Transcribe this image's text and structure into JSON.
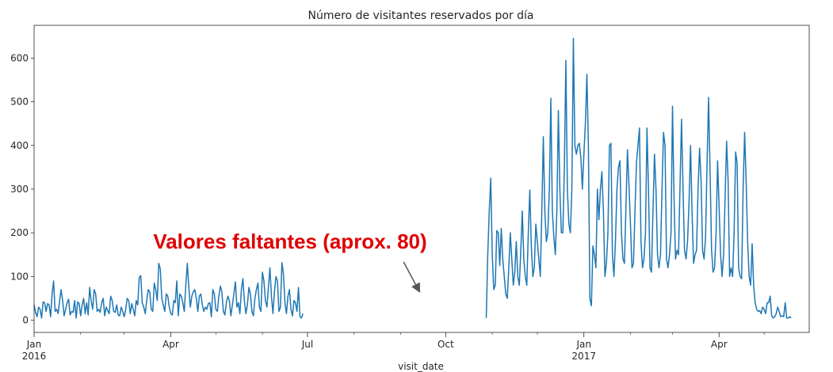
{
  "chart_data": {
    "type": "line",
    "title": "Número de visitantes reservados por día",
    "xlabel": "visit_date",
    "ylabel": "",
    "ylim": [
      -28,
      675
    ],
    "xlim": [
      "2016-01-01",
      "2017-05-31"
    ],
    "grid": false,
    "legend": "none",
    "line_color": "#1f77b4",
    "y_ticks": [
      0,
      100,
      200,
      300,
      400,
      500,
      600
    ],
    "x_ticks": [
      {
        "date": "2016-01-01",
        "label": "Jan",
        "sublabel": "2016"
      },
      {
        "date": "2016-04-01",
        "label": "Apr",
        "sublabel": ""
      },
      {
        "date": "2016-07-01",
        "label": "Jul",
        "sublabel": ""
      },
      {
        "date": "2016-10-01",
        "label": "Oct",
        "sublabel": ""
      },
      {
        "date": "2017-01-01",
        "label": "Jan",
        "sublabel": "2017"
      },
      {
        "date": "2017-04-01",
        "label": "Apr",
        "sublabel": ""
      }
    ],
    "annotation": {
      "text": "Valores faltantes (aprox. 80)",
      "color": "#e00000",
      "arrow_color": "#555555",
      "arrow_from": "2016-09-03",
      "arrow_to": "2016-09-14"
    },
    "series": [
      {
        "segments": [
          {
            "start": "2016-01-01",
            "values": [
              35,
              18,
              8,
              30,
              25,
              5,
              42,
              40,
              20,
              38,
              35,
              8,
              60,
              90,
              20,
              25,
              15,
              45,
              70,
              45,
              10,
              25,
              40,
              48,
              12,
              20,
              18,
              45,
              5,
              42,
              38,
              10,
              35,
              50,
              15,
              40,
              12,
              75,
              45,
              25,
              70,
              60,
              20,
              25,
              18,
              40,
              50,
              10,
              30,
              22,
              15,
              55,
              45,
              20,
              18,
              35,
              12,
              10,
              30,
              20,
              8,
              25,
              50,
              45,
              15,
              38,
              25,
              10,
              45,
              35,
              98,
              102,
              40,
              30,
              15,
              45,
              70,
              65,
              25,
              20,
              85,
              70,
              45,
              130,
              118,
              50,
              35,
              20,
              60,
              55,
              30,
              15,
              12,
              45,
              40,
              90,
              10,
              60,
              55,
              40,
              20,
              80,
              130,
              75,
              30,
              55,
              65,
              70,
              50,
              20,
              55,
              60,
              35,
              20,
              30,
              25,
              38,
              40,
              8,
              70,
              60,
              25,
              20,
              55,
              78,
              65,
              20,
              12,
              40,
              55,
              45,
              10,
              35,
              60,
              88,
              30,
              40,
              15,
              70,
              95,
              45,
              15,
              35,
              75,
              60,
              20,
              10,
              50,
              70,
              85,
              30,
              20,
              110,
              90,
              45,
              30,
              75,
              120,
              55,
              15,
              65,
              100,
              90,
              20,
              30,
              132,
              105,
              40,
              15,
              55,
              70,
              25,
              10,
              45,
              40,
              20,
              75,
              8,
              5,
              15
            ]
          },
          {
            "start": "2016-10-28",
            "values": [
              5,
              150,
              250,
              325,
              150,
              70,
              80,
              205,
              200,
              125,
              210,
              140,
              100,
              60,
              50,
              120,
              200,
              140,
              80,
              110,
              180,
              100,
              80,
              160,
              250,
              140,
              100,
              80,
              200,
              298,
              170,
              100,
              120,
              220,
              180,
              140,
              100,
              250,
              420,
              250,
              180,
              200,
              300,
              508,
              250,
              190,
              150,
              250,
              480,
              300,
              200,
              200,
              350,
              595,
              300,
              220,
              200,
              300,
              645,
              400,
              380,
              400,
              405,
              370,
              300,
              380,
              450,
              563,
              400,
              50,
              33,
              170,
              150,
              120,
              300,
              230,
              300,
              340,
              250,
              100,
              130,
              200,
              400,
              405,
              150,
              100,
              180,
              300,
              350,
              365,
              200,
              140,
              130,
              260,
              390,
              310,
              220,
              120,
              130,
              250,
              360,
              400,
              440,
              180,
              120,
              140,
              200,
              440,
              300,
              120,
              110,
              250,
              380,
              300,
              150,
              120,
              150,
              300,
              430,
              400,
              140,
              120,
              150,
              200,
              490,
              280,
              140,
              160,
              150,
              310,
              460,
              300,
              160,
              140,
              180,
              270,
              400,
              250,
              130,
              150,
              160,
              300,
              394,
              320,
              160,
              140,
              190,
              360,
              510,
              340,
              160,
              110,
              120,
              200,
              365,
              260,
              150,
              100,
              150,
              280,
              410,
              320,
              100,
              120,
              100,
              200,
              385,
              360,
              120,
              100,
              95,
              300,
              430,
              320,
              180,
              100,
              80,
              175,
              80,
              40,
              25,
              20,
              22,
              15,
              30,
              25,
              15,
              40,
              40,
              55,
              10,
              5,
              8,
              15,
              30,
              20,
              8,
              10,
              8,
              40,
              5,
              5,
              8,
              5
            ]
          }
        ]
      }
    ]
  }
}
